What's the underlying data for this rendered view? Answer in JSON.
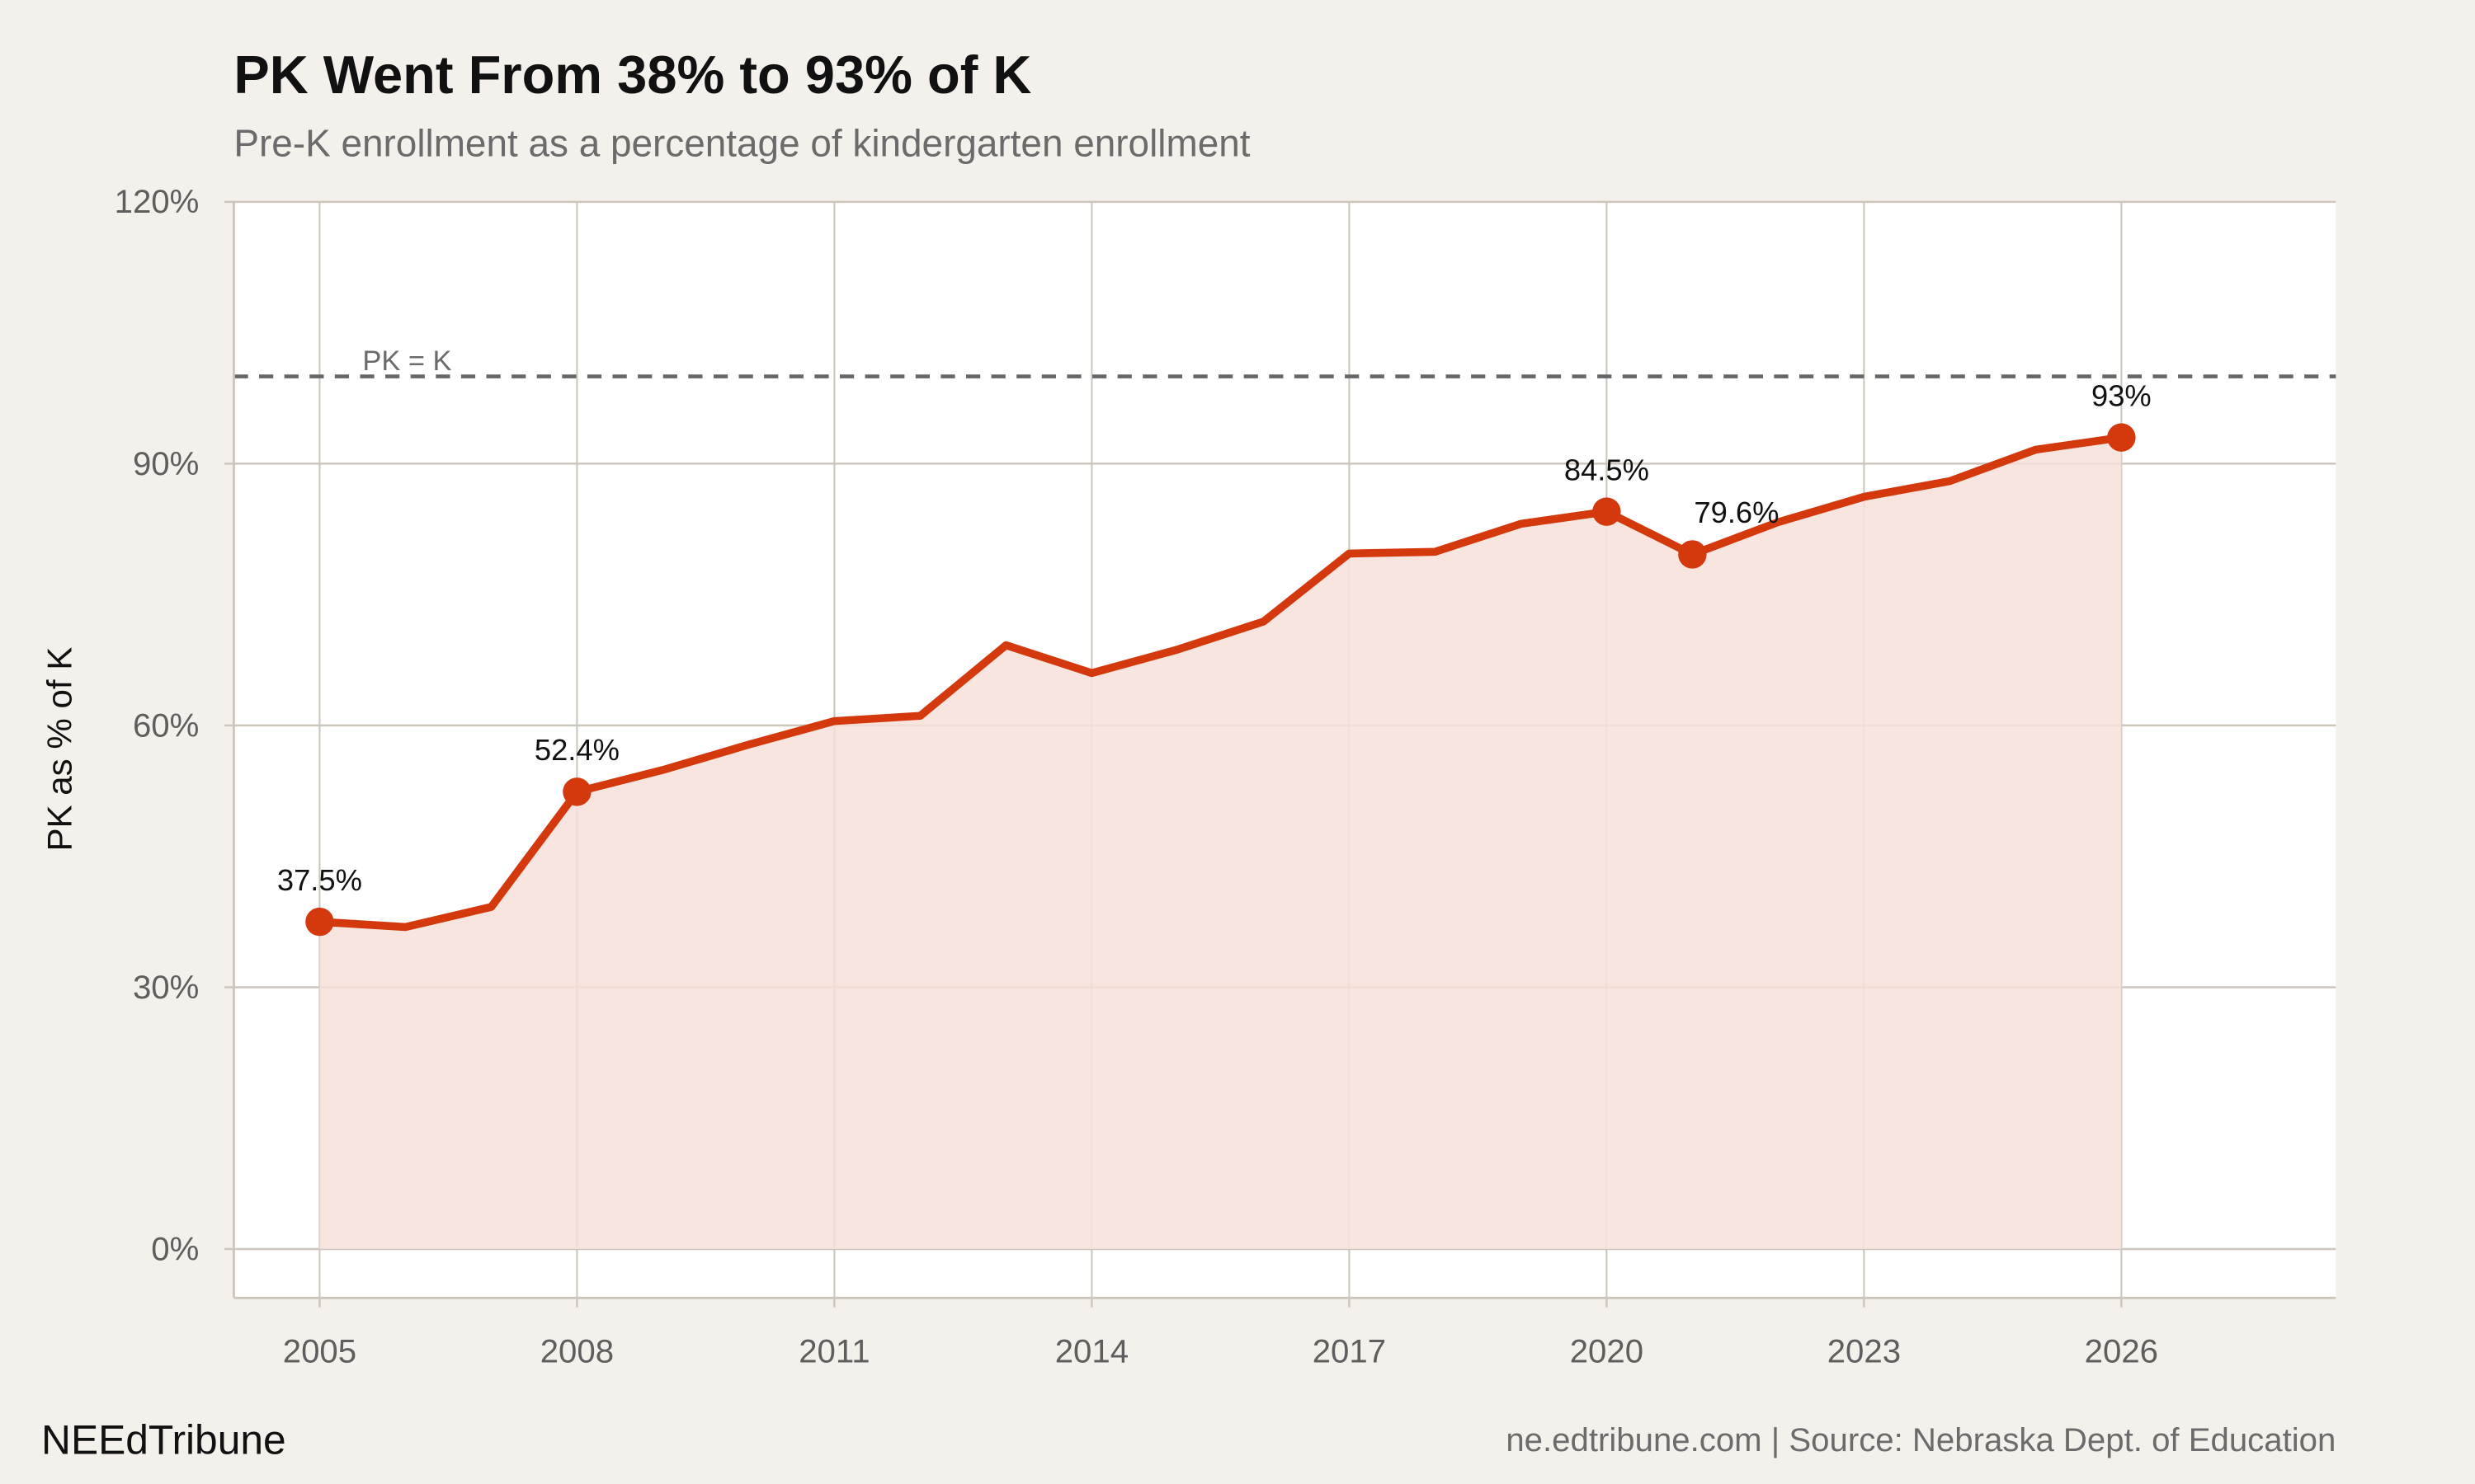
{
  "chart_data": {
    "type": "area",
    "title": "PK Went From 38% to 93% of K",
    "subtitle": "Pre-K enrollment as a percentage of kindergarten enrollment",
    "xlabel": "",
    "ylabel": "PK as % of K",
    "x": [
      2005,
      2006,
      2007,
      2008,
      2009,
      2010,
      2011,
      2012,
      2013,
      2014,
      2015,
      2016,
      2017,
      2018,
      2019,
      2020,
      2021,
      2022,
      2023,
      2024,
      2025,
      2026
    ],
    "values": [
      37.5,
      36.9,
      39.2,
      52.4,
      54.9,
      57.8,
      60.5,
      61.1,
      69.2,
      66.0,
      68.7,
      71.9,
      79.7,
      79.9,
      83.1,
      84.5,
      79.6,
      83.3,
      86.2,
      88.0,
      91.6,
      93.0
    ],
    "xlim": [
      2004,
      2028.5
    ],
    "ylim": [
      -5.6,
      120
    ],
    "x_ticks": [
      2005,
      2008,
      2011,
      2014,
      2017,
      2020,
      2023,
      2026
    ],
    "x_tick_labels": [
      "2005",
      "2008",
      "2011",
      "2014",
      "2017",
      "2020",
      "2023",
      "2026"
    ],
    "y_ticks": [
      0,
      30,
      60,
      90,
      120
    ],
    "y_tick_labels": [
      "0%",
      "30%",
      "60%",
      "90%",
      "120%"
    ],
    "grid": true,
    "labeled_points": [
      {
        "x": 2005,
        "label": "37.5%"
      },
      {
        "x": 2008,
        "label": "52.4%"
      },
      {
        "x": 2020,
        "label": "84.5%"
      },
      {
        "x": 2021,
        "label": "79.6%"
      },
      {
        "x": 2026,
        "label": "93%"
      }
    ],
    "reference_line": {
      "y": 100,
      "label": "PK = K",
      "style": "dashed"
    },
    "colors": {
      "line": "#d4380d",
      "fill": "#f7e0da",
      "background": "#f4f1ec",
      "panel": "#ffffff",
      "grid": "#cdc6bd",
      "reference": "#666666"
    }
  },
  "footer": {
    "brand": "NEEdTribune",
    "source": "ne.edtribune.com | Source: Nebraska Dept. of Education"
  }
}
